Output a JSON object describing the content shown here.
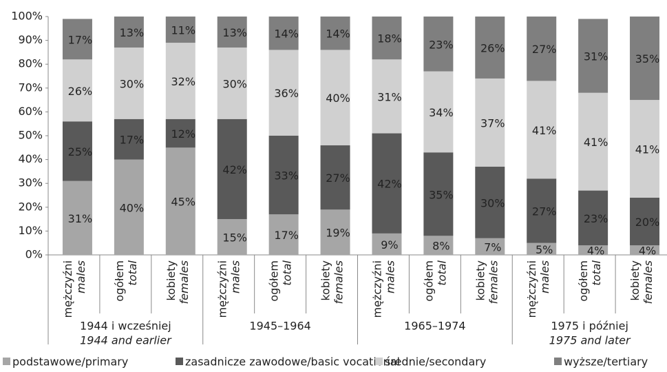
{
  "chart_data": {
    "type": "stacked_bar",
    "categories": [
      {
        "pl": "mężczyźni",
        "en": "males"
      },
      {
        "pl": "ogółem",
        "en": "total"
      },
      {
        "pl": "kobiety",
        "en": "females"
      },
      {
        "pl": "mężczyźni",
        "en": "males"
      },
      {
        "pl": "ogółem",
        "en": "total"
      },
      {
        "pl": "kobiety",
        "en": "females"
      },
      {
        "pl": "mężczyźni",
        "en": "males"
      },
      {
        "pl": "ogółem",
        "en": "total"
      },
      {
        "pl": "kobiety",
        "en": "females"
      },
      {
        "pl": "mężczyźni",
        "en": "males"
      },
      {
        "pl": "ogółem",
        "en": "total"
      },
      {
        "pl": "kobiety",
        "en": "females"
      }
    ],
    "groups": [
      {
        "pl": "1944 i wcześniej",
        "en": "1944 and earlier"
      },
      {
        "pl": "1945–1964"
      },
      {
        "pl": "1965–1974"
      },
      {
        "pl": "1975 i później",
        "en": "1975 and later"
      }
    ],
    "series": [
      {
        "name": "podstawowe/primary",
        "color": "#a6a6a6",
        "values": [
          31,
          40,
          45,
          15,
          17,
          19,
          9,
          8,
          7,
          5,
          4,
          4
        ],
        "value_labels": [
          "31%",
          "40%",
          "45%",
          "15%",
          "17%",
          "19%",
          "9%",
          "8%",
          "7%",
          "5%",
          "4%",
          "4%"
        ]
      },
      {
        "name": "zasadnicze zawodowe/basic vocational",
        "color": "#595959",
        "values": [
          25,
          17,
          12,
          42,
          33,
          27,
          42,
          35,
          30,
          27,
          23,
          20
        ],
        "value_labels": [
          "25%",
          "17%",
          "12%",
          "42%",
          "33%",
          "27%",
          "42%",
          "35%",
          "30%",
          "27%",
          "23%",
          "20%"
        ]
      },
      {
        "name": "średnie/secondary",
        "color": "#d0d0d0",
        "values": [
          26,
          30,
          32,
          30,
          36,
          40,
          31,
          34,
          37,
          41,
          41,
          41
        ],
        "value_labels": [
          "26%",
          "30%",
          "32%",
          "30%",
          "36%",
          "40%",
          "31%",
          "34%",
          "37%",
          "41%",
          "41%",
          "41%"
        ]
      },
      {
        "name": "wyższe/tertiary",
        "color": "#7f7f7f",
        "values": [
          17,
          13,
          11,
          13,
          14,
          14,
          18,
          23,
          26,
          27,
          31,
          35
        ],
        "value_labels": [
          "17%",
          "13%",
          "11%",
          "13%",
          "14%",
          "14%",
          "18%",
          "23%",
          "26%",
          "27%",
          "31%",
          "35%"
        ]
      }
    ],
    "ylim": [
      0,
      100
    ],
    "yticks": [
      {
        "value": 0,
        "label": "0%"
      },
      {
        "value": 10,
        "label": "10%"
      },
      {
        "value": 20,
        "label": "20%"
      },
      {
        "value": 30,
        "label": "30%"
      },
      {
        "value": 40,
        "label": "40%"
      },
      {
        "value": 50,
        "label": "50%"
      },
      {
        "value": 60,
        "label": "60%"
      },
      {
        "value": 70,
        "label": "70%"
      },
      {
        "value": 80,
        "label": "80%"
      },
      {
        "value": 90,
        "label": "90%"
      },
      {
        "value": 100,
        "label": "100%"
      }
    ],
    "legend": "bottom"
  }
}
